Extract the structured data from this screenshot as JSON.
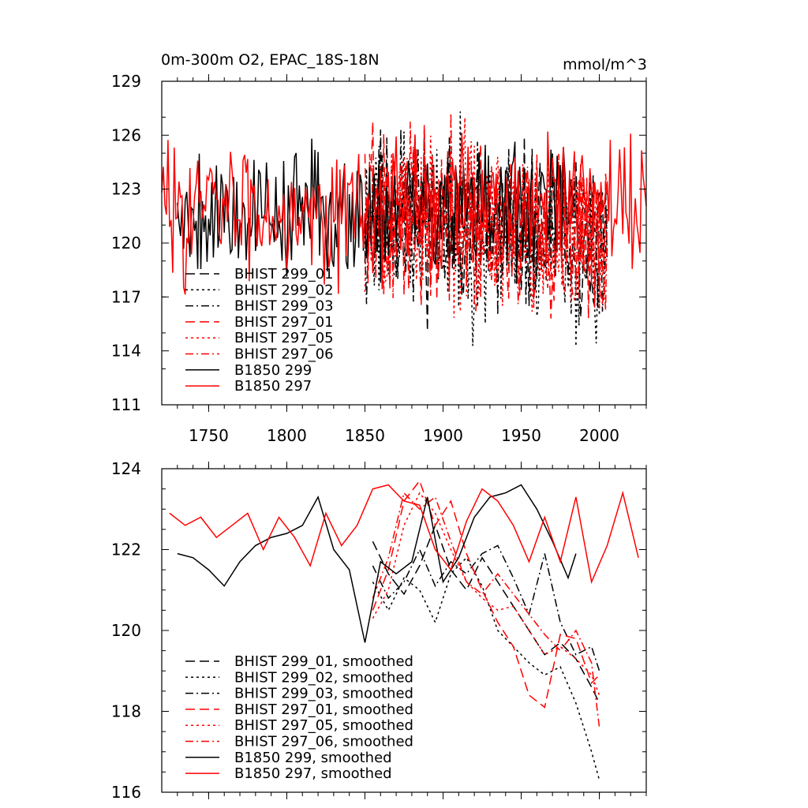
{
  "chart_data": [
    {
      "type": "line",
      "title": "0m-300m O2, EPAC_18S-18N",
      "units": "mmol/m^3",
      "xlim": [
        1720,
        2030
      ],
      "ylim": [
        111,
        129
      ],
      "x_ticks": [
        1750,
        1800,
        1850,
        1900,
        1950,
        2000
      ],
      "y_ticks": [
        111,
        114,
        117,
        120,
        123,
        126,
        129
      ],
      "grid": false,
      "legend_position": "bottom-left",
      "series": [
        {
          "name": "BHIST 299_01",
          "color": "#000000",
          "dash": "dashed",
          "x_start": 1850,
          "x_end": 2005,
          "base": 121.8,
          "trend": -1.5,
          "amp": 2.3,
          "seed": 11
        },
        {
          "name": "BHIST 299_02",
          "color": "#000000",
          "dash": "dotted",
          "x_start": 1850,
          "x_end": 2005,
          "base": 121.5,
          "trend": -2.2,
          "amp": 2.4,
          "seed": 23
        },
        {
          "name": "BHIST 299_03",
          "color": "#000000",
          "dash": "dashdot",
          "x_start": 1850,
          "x_end": 2005,
          "base": 121.6,
          "trend": -1.6,
          "amp": 2.2,
          "seed": 37
        },
        {
          "name": "BHIST 297_01",
          "color": "#ff0000",
          "dash": "dashed",
          "x_start": 1850,
          "x_end": 2005,
          "base": 122.0,
          "trend": -2.0,
          "amp": 2.3,
          "seed": 41
        },
        {
          "name": "BHIST 297_05",
          "color": "#ff0000",
          "dash": "dotted",
          "x_start": 1850,
          "x_end": 2005,
          "base": 122.1,
          "trend": -2.1,
          "amp": 2.3,
          "seed": 53
        },
        {
          "name": "BHIST 297_06",
          "color": "#ff0000",
          "dash": "dashdot",
          "x_start": 1850,
          "x_end": 2005,
          "base": 122.0,
          "trend": -1.9,
          "amp": 2.2,
          "seed": 67
        },
        {
          "name": "B1850 299",
          "color": "#000000",
          "dash": "solid",
          "x_start": 1730,
          "x_end": 1985,
          "base": 121.8,
          "trend": 0.0,
          "amp": 1.8,
          "seed": 79
        },
        {
          "name": "B1850 297",
          "color": "#ff0000",
          "dash": "solid",
          "x_start": 1720,
          "x_end": 2030,
          "base": 122.0,
          "trend": 0.0,
          "amp": 1.8,
          "seed": 83
        }
      ]
    },
    {
      "type": "line",
      "xlim": [
        1720,
        2030
      ],
      "ylim": [
        116,
        124
      ],
      "x_ticks": [
        1750,
        1800,
        1850,
        1900,
        1950,
        2000
      ],
      "y_ticks": [
        116,
        118,
        120,
        122,
        124
      ],
      "grid": false,
      "legend_position": "bottom-left",
      "series": [
        {
          "name": "BHIST 299_01, smoothed",
          "color": "#000000",
          "dash": "dashed",
          "x": [
            1855,
            1865,
            1875,
            1885,
            1895,
            1905,
            1915,
            1925,
            1935,
            1945,
            1955,
            1965,
            1975,
            1985,
            1995,
            2000
          ],
          "y": [
            122.2,
            121.4,
            120.9,
            121.6,
            122.6,
            121.5,
            121.0,
            121.8,
            121.2,
            120.6,
            120.0,
            119.4,
            119.7,
            119.3,
            118.6,
            118.2
          ]
        },
        {
          "name": "BHIST 299_02, smoothed",
          "color": "#000000",
          "dash": "dotted",
          "x": [
            1855,
            1865,
            1875,
            1885,
            1895,
            1905,
            1915,
            1925,
            1935,
            1945,
            1955,
            1965,
            1975,
            1985,
            1995,
            2000
          ],
          "y": [
            121.2,
            120.5,
            121.3,
            121.0,
            120.2,
            121.4,
            121.8,
            121.1,
            120.0,
            119.6,
            119.2,
            118.9,
            119.1,
            118.2,
            117.0,
            116.3
          ]
        },
        {
          "name": "BHIST 299_03, smoothed",
          "color": "#000000",
          "dash": "dashdot",
          "x": [
            1855,
            1865,
            1875,
            1885,
            1895,
            1905,
            1915,
            1925,
            1935,
            1945,
            1955,
            1965,
            1975,
            1985,
            1995,
            2000
          ],
          "y": [
            121.6,
            120.8,
            121.2,
            122.0,
            121.1,
            121.7,
            121.4,
            121.9,
            122.1,
            121.3,
            120.4,
            121.9,
            120.2,
            119.4,
            119.6,
            119.0
          ]
        },
        {
          "name": "BHIST 297_01, smoothed",
          "color": "#ff0000",
          "dash": "dashed",
          "x": [
            1855,
            1865,
            1875,
            1885,
            1895,
            1905,
            1915,
            1925,
            1935,
            1945,
            1955,
            1965,
            1975,
            1985,
            1995,
            2000
          ],
          "y": [
            120.5,
            121.5,
            123.2,
            123.7,
            122.6,
            123.2,
            121.9,
            121.0,
            120.2,
            119.6,
            118.4,
            118.1,
            119.9,
            119.8,
            118.7,
            118.9
          ]
        },
        {
          "name": "BHIST 297_05, smoothed",
          "color": "#ff0000",
          "dash": "dotted",
          "x": [
            1855,
            1865,
            1875,
            1885,
            1895,
            1905,
            1915,
            1925,
            1935,
            1945,
            1955,
            1965,
            1975,
            1985,
            1995,
            2000
          ],
          "y": [
            120.3,
            121.0,
            122.6,
            123.4,
            122.9,
            122.0,
            121.2,
            120.8,
            120.5,
            120.6,
            120.0,
            119.4,
            119.6,
            119.3,
            118.9,
            118.4
          ]
        },
        {
          "name": "BHIST 297_06, smoothed",
          "color": "#ff0000",
          "dash": "dashdot",
          "x": [
            1855,
            1865,
            1875,
            1885,
            1895,
            1905,
            1915,
            1925,
            1935,
            1945,
            1955,
            1965,
            1975,
            1985,
            1995,
            2000
          ],
          "y": [
            120.8,
            121.8,
            123.4,
            123.0,
            123.3,
            122.2,
            121.2,
            120.9,
            121.4,
            120.9,
            120.4,
            119.9,
            119.5,
            120.0,
            119.2,
            117.6
          ]
        },
        {
          "name": "B1850 299, smoothed",
          "color": "#000000",
          "dash": "solid",
          "x": [
            1730,
            1740,
            1750,
            1760,
            1770,
            1780,
            1790,
            1800,
            1810,
            1820,
            1830,
            1840,
            1850,
            1860,
            1870,
            1880,
            1890,
            1900,
            1910,
            1920,
            1930,
            1940,
            1950,
            1960,
            1970,
            1980,
            1985
          ],
          "y": [
            121.9,
            121.8,
            121.5,
            121.1,
            121.7,
            122.1,
            122.3,
            122.4,
            122.6,
            123.3,
            122.0,
            121.5,
            119.7,
            121.7,
            121.4,
            121.7,
            123.3,
            121.2,
            121.8,
            122.8,
            123.3,
            123.4,
            123.6,
            123.0,
            122.2,
            121.3,
            121.9
          ]
        },
        {
          "name": "B1850 297, smoothed",
          "color": "#ff0000",
          "dash": "solid",
          "x": [
            1725,
            1735,
            1745,
            1755,
            1765,
            1775,
            1785,
            1795,
            1805,
            1815,
            1825,
            1835,
            1845,
            1855,
            1865,
            1875,
            1885,
            1895,
            1905,
            1915,
            1925,
            1935,
            1945,
            1955,
            1965,
            1975,
            1985,
            1995,
            2005,
            2015,
            2025
          ],
          "y": [
            122.9,
            122.6,
            122.8,
            122.3,
            122.6,
            122.9,
            122.0,
            122.8,
            122.3,
            121.6,
            122.9,
            122.1,
            122.6,
            123.5,
            123.6,
            123.2,
            123.1,
            122.0,
            121.5,
            122.7,
            123.5,
            123.2,
            122.6,
            121.7,
            122.8,
            121.7,
            123.3,
            121.2,
            122.1,
            123.4,
            121.8
          ]
        }
      ]
    }
  ]
}
